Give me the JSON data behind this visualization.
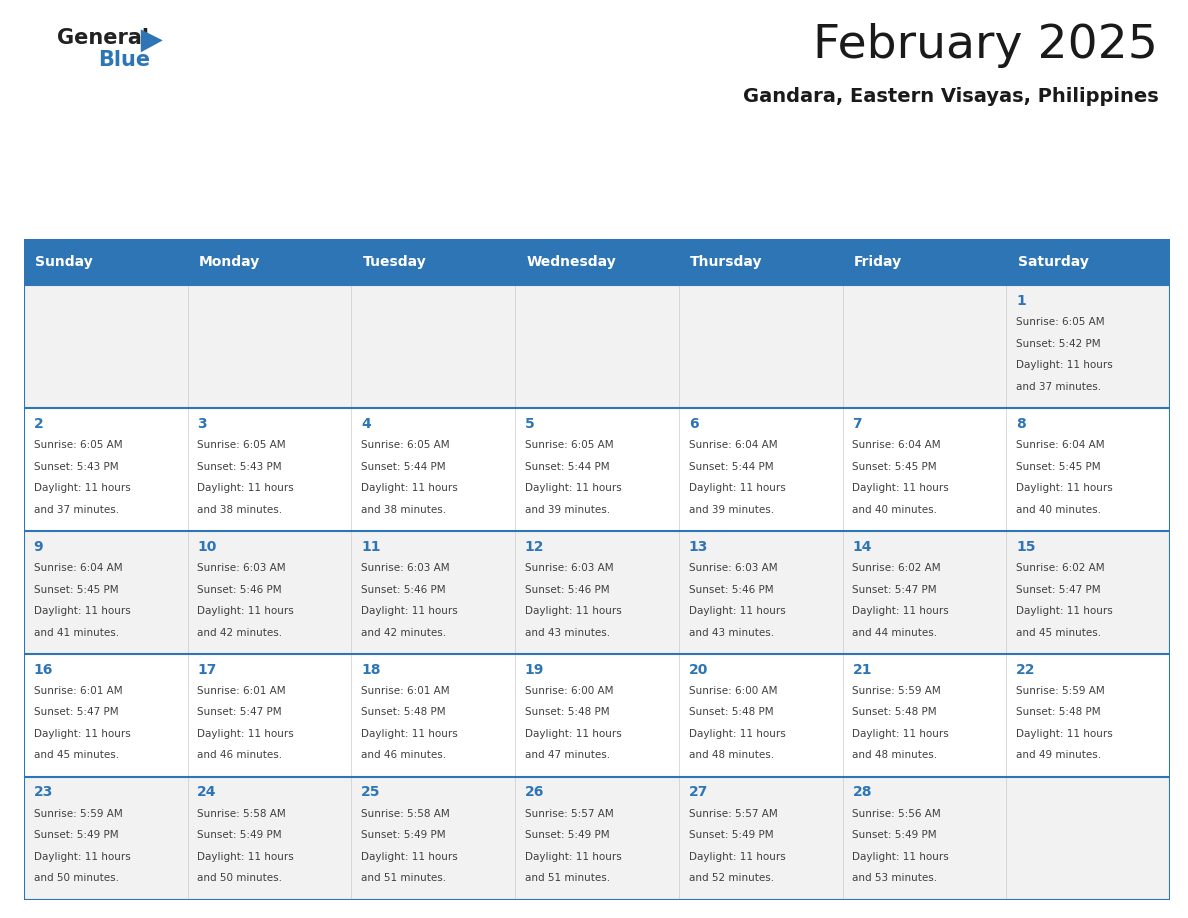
{
  "title": "February 2025",
  "subtitle": "Gandara, Eastern Visayas, Philippines",
  "header_bg": "#2E75B6",
  "header_text_color": "#FFFFFF",
  "day_names": [
    "Sunday",
    "Monday",
    "Tuesday",
    "Wednesday",
    "Thursday",
    "Friday",
    "Saturday"
  ],
  "row_colors": [
    "#F2F2F2",
    "#FFFFFF",
    "#F2F2F2",
    "#FFFFFF",
    "#F2F2F2"
  ],
  "border_color": "#2E75B6",
  "day_number_color": "#2E75B6",
  "info_text_color": "#404040",
  "logo_general_color": "#222222",
  "logo_blue_color": "#2E75B6",
  "logo_triangle_color": "#2E75B6",
  "days": [
    {
      "day": 1,
      "col": 6,
      "row": 0,
      "sunrise": "6:05 AM",
      "sunset": "5:42 PM",
      "daylight": "11 hours and 37 minutes."
    },
    {
      "day": 2,
      "col": 0,
      "row": 1,
      "sunrise": "6:05 AM",
      "sunset": "5:43 PM",
      "daylight": "11 hours and 37 minutes."
    },
    {
      "day": 3,
      "col": 1,
      "row": 1,
      "sunrise": "6:05 AM",
      "sunset": "5:43 PM",
      "daylight": "11 hours and 38 minutes."
    },
    {
      "day": 4,
      "col": 2,
      "row": 1,
      "sunrise": "6:05 AM",
      "sunset": "5:44 PM",
      "daylight": "11 hours and 38 minutes."
    },
    {
      "day": 5,
      "col": 3,
      "row": 1,
      "sunrise": "6:05 AM",
      "sunset": "5:44 PM",
      "daylight": "11 hours and 39 minutes."
    },
    {
      "day": 6,
      "col": 4,
      "row": 1,
      "sunrise": "6:04 AM",
      "sunset": "5:44 PM",
      "daylight": "11 hours and 39 minutes."
    },
    {
      "day": 7,
      "col": 5,
      "row": 1,
      "sunrise": "6:04 AM",
      "sunset": "5:45 PM",
      "daylight": "11 hours and 40 minutes."
    },
    {
      "day": 8,
      "col": 6,
      "row": 1,
      "sunrise": "6:04 AM",
      "sunset": "5:45 PM",
      "daylight": "11 hours and 40 minutes."
    },
    {
      "day": 9,
      "col": 0,
      "row": 2,
      "sunrise": "6:04 AM",
      "sunset": "5:45 PM",
      "daylight": "11 hours and 41 minutes."
    },
    {
      "day": 10,
      "col": 1,
      "row": 2,
      "sunrise": "6:03 AM",
      "sunset": "5:46 PM",
      "daylight": "11 hours and 42 minutes."
    },
    {
      "day": 11,
      "col": 2,
      "row": 2,
      "sunrise": "6:03 AM",
      "sunset": "5:46 PM",
      "daylight": "11 hours and 42 minutes."
    },
    {
      "day": 12,
      "col": 3,
      "row": 2,
      "sunrise": "6:03 AM",
      "sunset": "5:46 PM",
      "daylight": "11 hours and 43 minutes."
    },
    {
      "day": 13,
      "col": 4,
      "row": 2,
      "sunrise": "6:03 AM",
      "sunset": "5:46 PM",
      "daylight": "11 hours and 43 minutes."
    },
    {
      "day": 14,
      "col": 5,
      "row": 2,
      "sunrise": "6:02 AM",
      "sunset": "5:47 PM",
      "daylight": "11 hours and 44 minutes."
    },
    {
      "day": 15,
      "col": 6,
      "row": 2,
      "sunrise": "6:02 AM",
      "sunset": "5:47 PM",
      "daylight": "11 hours and 45 minutes."
    },
    {
      "day": 16,
      "col": 0,
      "row": 3,
      "sunrise": "6:01 AM",
      "sunset": "5:47 PM",
      "daylight": "11 hours and 45 minutes."
    },
    {
      "day": 17,
      "col": 1,
      "row": 3,
      "sunrise": "6:01 AM",
      "sunset": "5:47 PM",
      "daylight": "11 hours and 46 minutes."
    },
    {
      "day": 18,
      "col": 2,
      "row": 3,
      "sunrise": "6:01 AM",
      "sunset": "5:48 PM",
      "daylight": "11 hours and 46 minutes."
    },
    {
      "day": 19,
      "col": 3,
      "row": 3,
      "sunrise": "6:00 AM",
      "sunset": "5:48 PM",
      "daylight": "11 hours and 47 minutes."
    },
    {
      "day": 20,
      "col": 4,
      "row": 3,
      "sunrise": "6:00 AM",
      "sunset": "5:48 PM",
      "daylight": "11 hours and 48 minutes."
    },
    {
      "day": 21,
      "col": 5,
      "row": 3,
      "sunrise": "5:59 AM",
      "sunset": "5:48 PM",
      "daylight": "11 hours and 48 minutes."
    },
    {
      "day": 22,
      "col": 6,
      "row": 3,
      "sunrise": "5:59 AM",
      "sunset": "5:48 PM",
      "daylight": "11 hours and 49 minutes."
    },
    {
      "day": 23,
      "col": 0,
      "row": 4,
      "sunrise": "5:59 AM",
      "sunset": "5:49 PM",
      "daylight": "11 hours and 50 minutes."
    },
    {
      "day": 24,
      "col": 1,
      "row": 4,
      "sunrise": "5:58 AM",
      "sunset": "5:49 PM",
      "daylight": "11 hours and 50 minutes."
    },
    {
      "day": 25,
      "col": 2,
      "row": 4,
      "sunrise": "5:58 AM",
      "sunset": "5:49 PM",
      "daylight": "11 hours and 51 minutes."
    },
    {
      "day": 26,
      "col": 3,
      "row": 4,
      "sunrise": "5:57 AM",
      "sunset": "5:49 PM",
      "daylight": "11 hours and 51 minutes."
    },
    {
      "day": 27,
      "col": 4,
      "row": 4,
      "sunrise": "5:57 AM",
      "sunset": "5:49 PM",
      "daylight": "11 hours and 52 minutes."
    },
    {
      "day": 28,
      "col": 5,
      "row": 4,
      "sunrise": "5:56 AM",
      "sunset": "5:49 PM",
      "daylight": "11 hours and 53 minutes."
    }
  ]
}
